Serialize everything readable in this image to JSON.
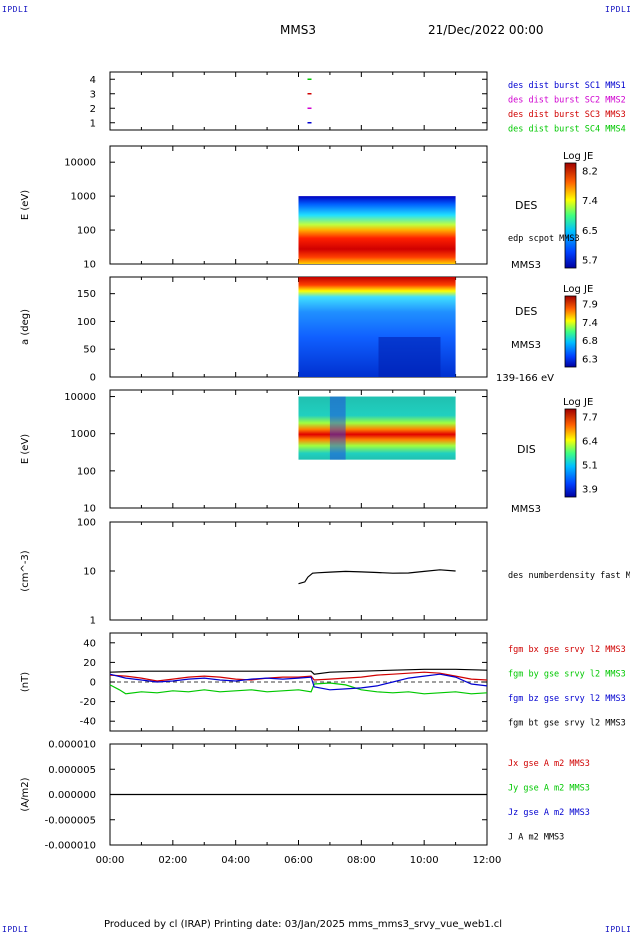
{
  "header": {
    "corner_label": "IPDLI",
    "spacecraft": "MMS3",
    "datetime": "21/Dec/2022 00:00"
  },
  "footer": {
    "text": "Produced by cl (IRAP)   Printing date: 03/Jan/2025   mms_mms3_srvy_vue_web1.cl"
  },
  "colors": {
    "red": "#d00000",
    "green": "#00c800",
    "blue": "#0000d0",
    "magenta": "#d000d0",
    "black": "#000000"
  },
  "chart_data": {
    "type": "multi-panel",
    "x_axis": {
      "range": [
        "00:00",
        "12:00"
      ],
      "tick_labels": [
        "00:00",
        "02:00",
        "04:00",
        "06:00",
        "08:00",
        "10:00",
        "12:00"
      ]
    },
    "panels": [
      {
        "id": "burst",
        "type": "scatter",
        "ylim": [
          0.5,
          4.5
        ],
        "ytick_labels": [
          "1",
          "2",
          "3",
          "4"
        ],
        "series": [
          {
            "name": "des dist burst SC1 MMS1",
            "color": "#0000d0",
            "level": 1
          },
          {
            "name": "des dist burst SC2 MMS2",
            "color": "#d000d0",
            "level": 2
          },
          {
            "name": "des dist burst SC3 MMS3",
            "color": "#d00000",
            "level": 3
          },
          {
            "name": "des dist burst SC4 MMS4",
            "color": "#00c800",
            "level": 4
          }
        ],
        "burst_time_hours": 6.35
      },
      {
        "id": "des_energy",
        "type": "heatmap",
        "ylabel": "E (eV)",
        "yscale": "log",
        "ylim": [
          10,
          30000
        ],
        "ytick_labels": [
          "10",
          "100",
          "1000",
          "10000"
        ],
        "data_span_hours": [
          6.0,
          11.0
        ],
        "data_y_range": [
          10,
          1000
        ],
        "label": "DES",
        "overlay_label": "edp scpot MMS3",
        "spacecraft": "MMS3",
        "colorbar": {
          "title": "Log JE",
          "tick_labels": [
            "8.2",
            "7.4",
            "6.5",
            "5.7"
          ]
        }
      },
      {
        "id": "des_pitch",
        "type": "heatmap",
        "ylabel": "a (deg)",
        "ylim": [
          0,
          180
        ],
        "ytick_labels": [
          "0",
          "50",
          "100",
          "150"
        ],
        "data_span_hours": [
          6.0,
          11.0
        ],
        "label": "DES",
        "spacecraft": "MMS3",
        "energy_range": "139-166 eV",
        "colorbar": {
          "title": "Log JE",
          "tick_labels": [
            "7.9",
            "7.4",
            "6.8",
            "6.3"
          ]
        }
      },
      {
        "id": "dis_energy",
        "type": "heatmap",
        "ylabel": "E (eV)",
        "yscale": "log",
        "ylim": [
          10,
          15000
        ],
        "ytick_labels": [
          "10",
          "100",
          "1000",
          "10000"
        ],
        "data_span_hours": [
          6.0,
          11.0
        ],
        "data_y_range": [
          200,
          10000
        ],
        "label": "DIS",
        "spacecraft": "MMS3",
        "colorbar": {
          "title": "Log JE",
          "tick_labels": [
            "7.7",
            "6.4",
            "5.1",
            "3.9"
          ]
        }
      },
      {
        "id": "density",
        "type": "line",
        "ylabel": "(cm^-3)",
        "yscale": "log",
        "ylim": [
          1,
          100
        ],
        "ytick_labels": [
          "1",
          "10",
          "100"
        ],
        "series": [
          {
            "name": "des numberdensity fast M",
            "color": "#000000",
            "x": [
              6.0,
              6.2,
              6.3,
              6.45,
              6.6,
              7.0,
              7.5,
              8.0,
              8.5,
              9.0,
              9.5,
              10.0,
              10.5,
              11.0
            ],
            "y": [
              5.5,
              6.0,
              7.5,
              9.0,
              9.2,
              9.5,
              9.8,
              9.6,
              9.3,
              9.0,
              9.1,
              9.8,
              10.6,
              10.0
            ]
          }
        ]
      },
      {
        "id": "bfield",
        "type": "line",
        "ylabel": "(nT)",
        "ylim": [
          -50,
          50
        ],
        "ytick_labels": [
          "-40",
          "-20",
          "0",
          "20",
          "40"
        ],
        "series": [
          {
            "name": "fgm bx gse srvy l2 MMS3",
            "color": "#d00000",
            "x": [
              0,
              0.5,
              1,
              1.5,
              2,
              2.5,
              3,
              3.5,
              4,
              4.5,
              5,
              5.5,
              6,
              6.4,
              6.5,
              7,
              7.5,
              8,
              8.5,
              9,
              9.5,
              10,
              10.5,
              11,
              11.5,
              12
            ],
            "y": [
              7,
              6,
              4,
              1,
              3,
              5,
              6,
              5,
              3,
              2,
              4,
              5,
              5,
              6,
              2,
              3,
              4,
              5,
              7,
              8,
              9,
              10,
              9,
              6,
              3,
              2
            ]
          },
          {
            "name": "fgm by gse srvy l2 MMS3",
            "color": "#00c800",
            "x": [
              0,
              0.3,
              0.5,
              1,
              1.5,
              2,
              2.5,
              3,
              3.5,
              4,
              4.5,
              5,
              5.5,
              6,
              6.4,
              6.5,
              7,
              7.5,
              8,
              8.5,
              9,
              9.5,
              10,
              10.5,
              11,
              11.5,
              12
            ],
            "y": [
              -3,
              -8,
              -12,
              -10,
              -11,
              -9,
              -10,
              -8,
              -10,
              -9,
              -8,
              -10,
              -9,
              -8,
              -10,
              -2,
              -1,
              -3,
              -8,
              -10,
              -11,
              -10,
              -12,
              -11,
              -10,
              -12,
              -11
            ]
          },
          {
            "name": "fgm bz gse srvy l2 MMS3",
            "color": "#0000d0",
            "x": [
              0,
              0.5,
              1,
              1.5,
              2,
              2.5,
              3,
              3.5,
              4,
              4.5,
              5,
              5.5,
              6,
              6.4,
              6.5,
              7,
              7.5,
              8,
              8.5,
              9,
              9.5,
              10,
              10.5,
              11,
              11.5,
              12
            ],
            "y": [
              8,
              4,
              2,
              0,
              1,
              3,
              4,
              2,
              1,
              3,
              4,
              3,
              4,
              5,
              -5,
              -8,
              -7,
              -6,
              -4,
              0,
              4,
              6,
              8,
              5,
              -2,
              -4
            ]
          },
          {
            "name": "fgm bt gse srvy l2 MMS3",
            "color": "#000000",
            "x": [
              0,
              1,
              2,
              3,
              4,
              5,
              6,
              6.4,
              6.5,
              7,
              8,
              9,
              10,
              11,
              12
            ],
            "y": [
              10,
              11,
              11,
              11,
              11,
              11,
              11,
              11,
              8,
              10,
              11,
              12,
              13,
              13,
              12
            ]
          }
        ]
      },
      {
        "id": "current",
        "type": "line",
        "ylabel": "(A/m2)",
        "ylim": [
          -1e-05,
          1e-05
        ],
        "ytick_labels": [
          "-0.000010",
          "-0.000005",
          "0.000000",
          "0.000005",
          "0.000010"
        ],
        "series": [
          {
            "name": "Jx gse A m2 MMS3",
            "color": "#d00000"
          },
          {
            "name": "Jy gse A m2 MMS3",
            "color": "#00c800"
          },
          {
            "name": "Jz gse A m2 MMS3",
            "color": "#0000d0"
          },
          {
            "name": "J A m2 MMS3",
            "color": "#000000",
            "x": [
              0,
              12
            ],
            "y": [
              0,
              0
            ]
          }
        ]
      }
    ]
  }
}
